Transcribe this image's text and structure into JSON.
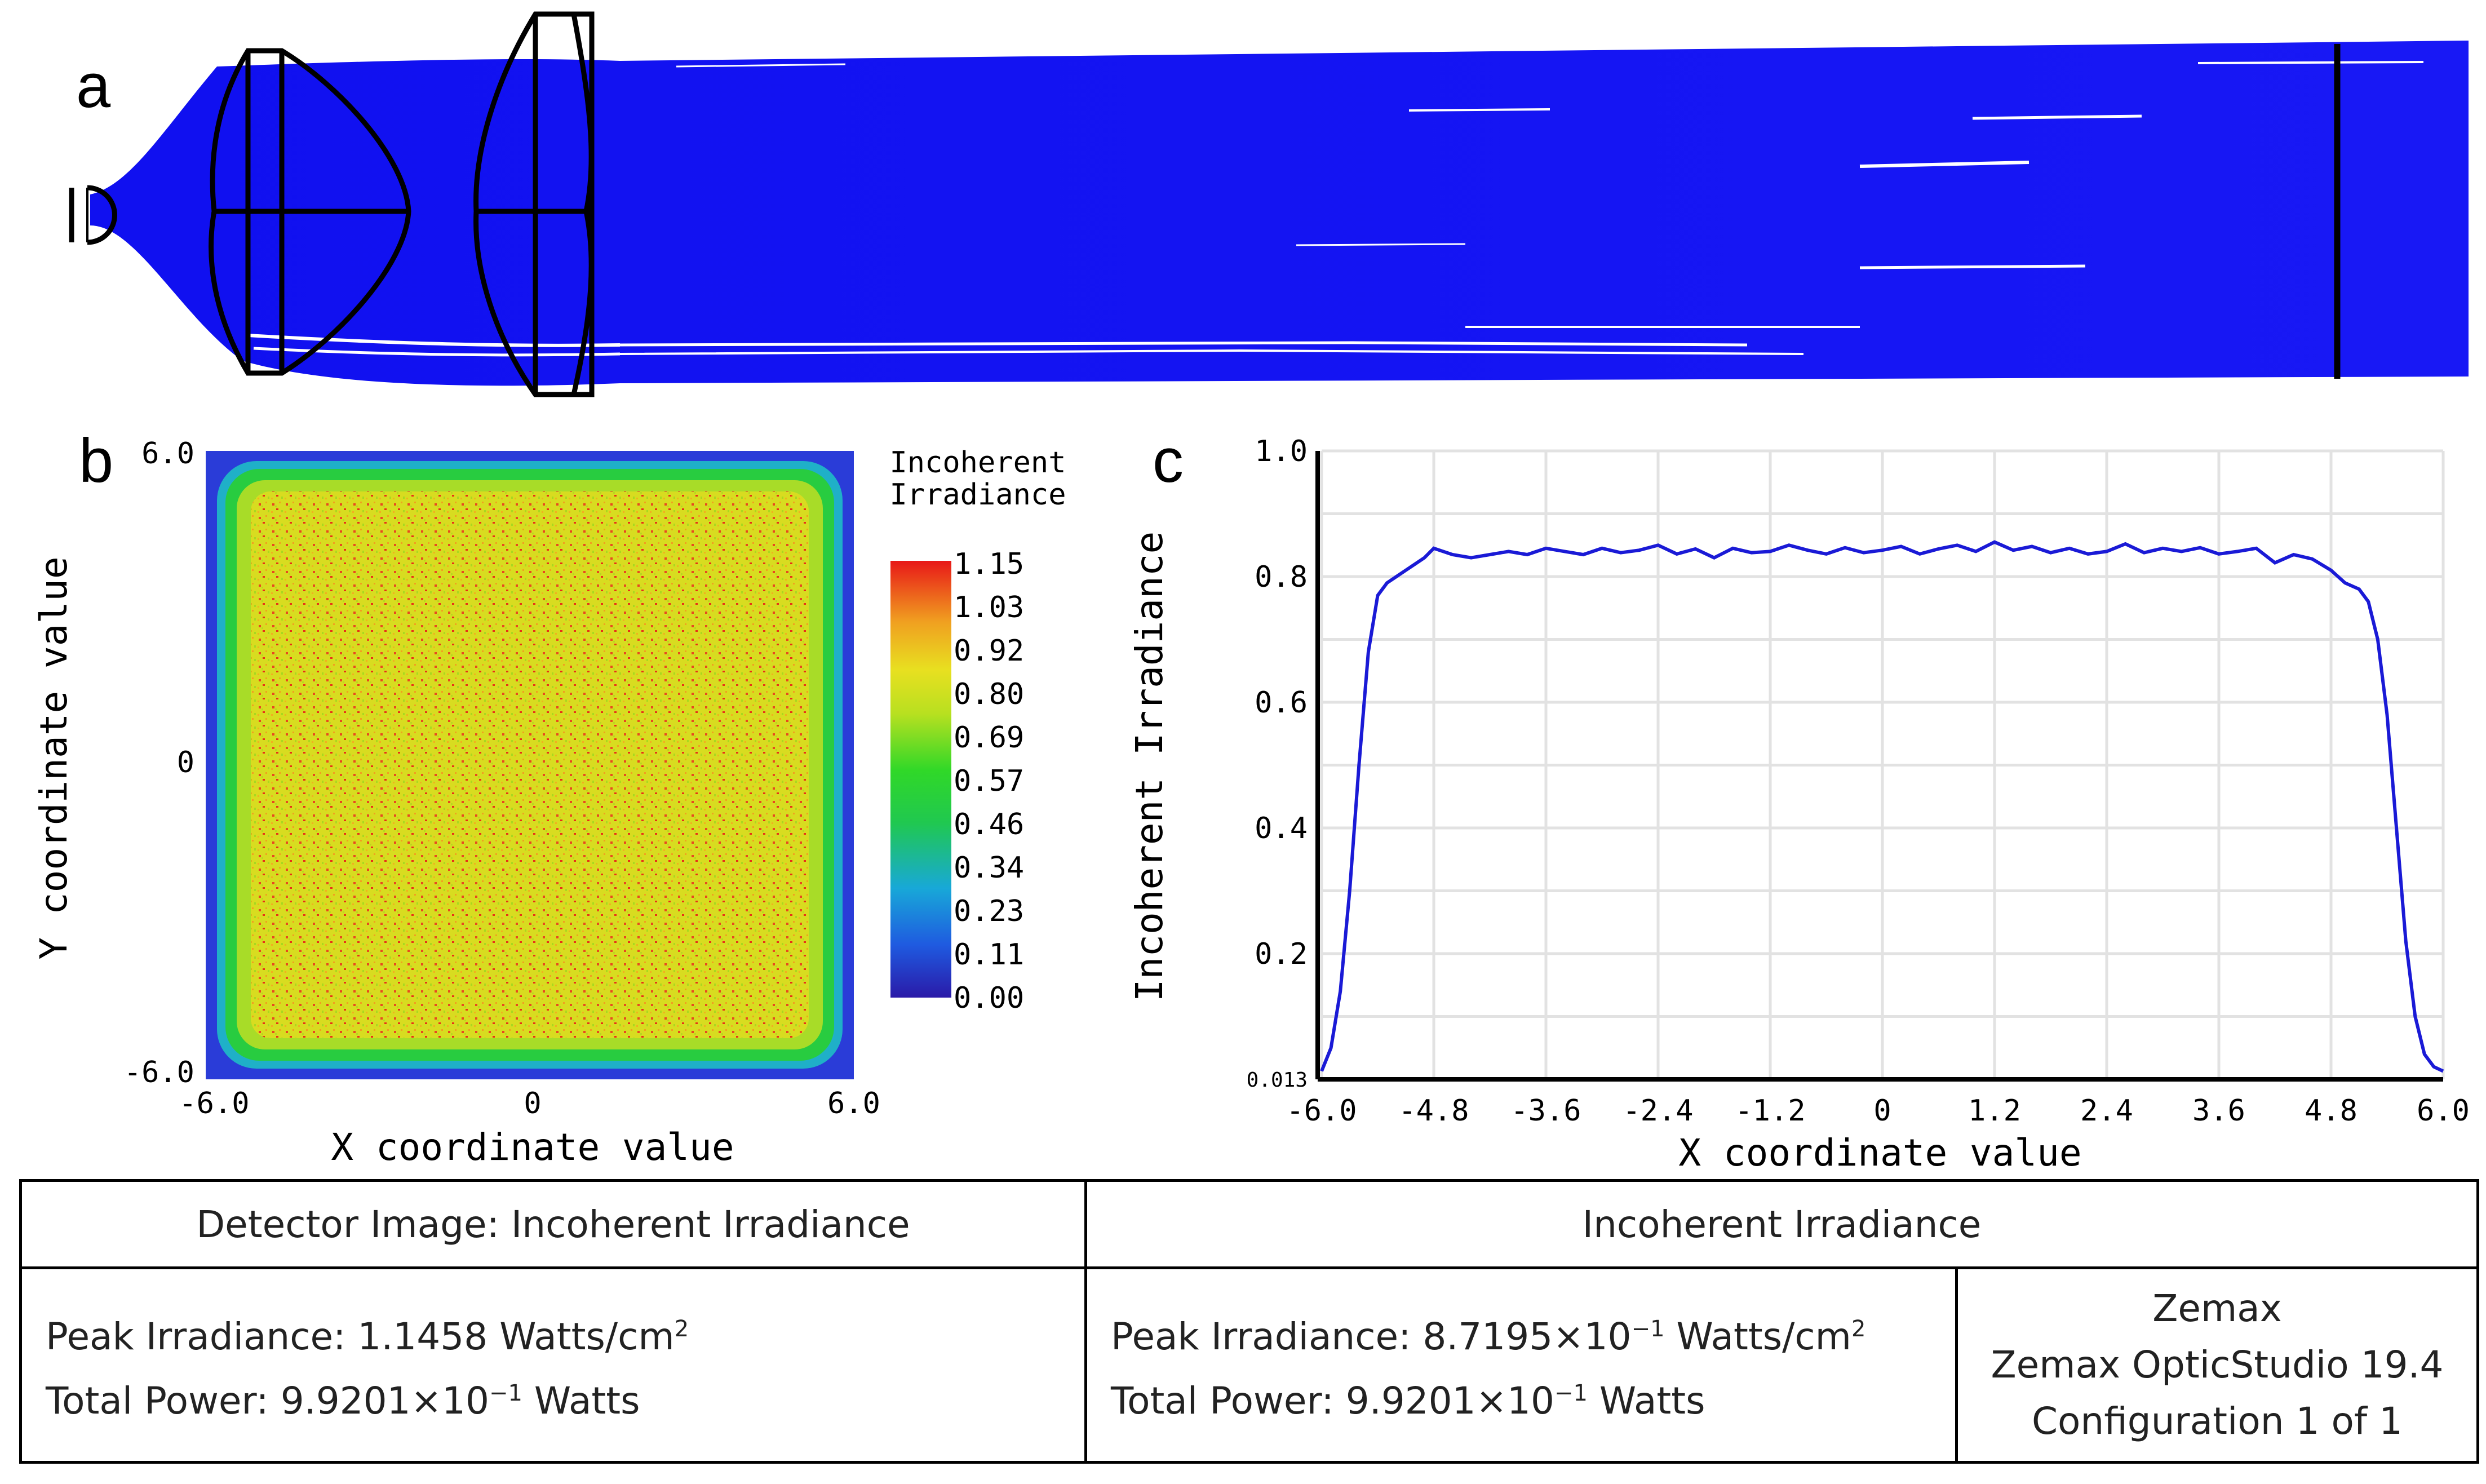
{
  "panels": {
    "a": {
      "letter": "a"
    },
    "b": {
      "letter": "b",
      "y_axis_title": "Y coordinate value",
      "x_axis_title": "X coordinate value",
      "y_ticks": [
        "6.0",
        "0",
        "-6.0"
      ],
      "x_ticks": [
        "-6.0",
        "0",
        "6.0"
      ],
      "legend_title_line1": "Incoherent",
      "legend_title_line2": "Irradiance",
      "legend_ticks": [
        "1.15",
        "1.03",
        "0.92",
        "0.80",
        "0.69",
        "0.57",
        "0.46",
        "0.34",
        "0.23",
        "0.11",
        "0.00"
      ],
      "colors": {
        "edge": "#2b3bd8",
        "ring": "#22c83c",
        "inner": "#d9df1e",
        "speckle": "#e8301a"
      }
    },
    "c": {
      "letter": "c"
    }
  },
  "chart_data": {
    "type": "line",
    "title": "",
    "xlabel": "X coordinate value",
    "ylabel": "Incoherent Irradiance",
    "xlim": [
      -6.0,
      6.0
    ],
    "ylim": [
      0.013,
      1.0
    ],
    "x_ticks": [
      "-6.0",
      "-4.8",
      "-3.6",
      "-2.4",
      "-1.2",
      "0",
      "1.2",
      "2.4",
      "3.6",
      "4.8",
      "6.0"
    ],
    "y_ticks": [
      "1.0",
      "0.8",
      "0.6",
      "0.4",
      "0.2",
      "0.013"
    ],
    "y_tick_values": [
      1.0,
      0.8,
      0.6,
      0.4,
      0.2,
      0.013
    ],
    "grid": true,
    "line_color": "#1a1ad6",
    "series": [
      {
        "x": [
          -6.0,
          -5.9,
          -5.8,
          -5.7,
          -5.6,
          -5.5,
          -5.4,
          -5.3,
          -5.2,
          -5.1,
          -5.0,
          -4.9,
          -4.8,
          -4.6,
          -4.4,
          -4.2,
          -4.0,
          -3.8,
          -3.6,
          -3.4,
          -3.2,
          -3.0,
          -2.8,
          -2.6,
          -2.4,
          -2.2,
          -2.0,
          -1.8,
          -1.6,
          -1.4,
          -1.2,
          -1.0,
          -0.8,
          -0.6,
          -0.4,
          -0.2,
          0.0,
          0.2,
          0.4,
          0.6,
          0.8,
          1.0,
          1.2,
          1.4,
          1.6,
          1.8,
          2.0,
          2.2,
          2.4,
          2.6,
          2.8,
          3.0,
          3.2,
          3.4,
          3.6,
          3.8,
          4.0,
          4.2,
          4.4,
          4.6,
          4.8,
          4.95,
          5.1,
          5.2,
          5.3,
          5.4,
          5.5,
          5.6,
          5.7,
          5.8,
          5.9,
          6.0
        ],
        "y": [
          0.013,
          0.05,
          0.14,
          0.3,
          0.5,
          0.68,
          0.77,
          0.79,
          0.8,
          0.81,
          0.82,
          0.83,
          0.845,
          0.835,
          0.83,
          0.835,
          0.84,
          0.835,
          0.845,
          0.84,
          0.835,
          0.845,
          0.838,
          0.842,
          0.85,
          0.836,
          0.844,
          0.83,
          0.845,
          0.838,
          0.84,
          0.85,
          0.842,
          0.836,
          0.846,
          0.838,
          0.842,
          0.848,
          0.836,
          0.844,
          0.85,
          0.84,
          0.855,
          0.842,
          0.848,
          0.838,
          0.845,
          0.836,
          0.84,
          0.852,
          0.838,
          0.845,
          0.84,
          0.846,
          0.836,
          0.84,
          0.845,
          0.822,
          0.835,
          0.828,
          0.81,
          0.79,
          0.78,
          0.76,
          0.7,
          0.58,
          0.4,
          0.22,
          0.1,
          0.04,
          0.02,
          0.013
        ]
      }
    ]
  },
  "table": {
    "left_header": "Detector Image: Incoherent Irradiance",
    "right_header": "Incoherent Irradiance",
    "left_peak_prefix": "Peak Irradiance: 1.1458 Watts/cm",
    "left_peak_sup": "2",
    "left_power_prefix": "Total Power: 9.9201×10",
    "left_power_sup": "−1",
    "left_power_suffix": " Watts",
    "right_peak_prefix": "Peak Irradiance: 8.7195×10",
    "right_peak_sup": "−1",
    "right_peak_mid": " Watts/cm",
    "right_peak_sup2": "2",
    "right_power_prefix": "Total Power: 9.9201×10",
    "right_power_sup": "−1",
    "right_power_suffix": " Watts",
    "zemax_line1": "Zemax",
    "zemax_line2": "Zemax OpticStudio 19.4",
    "zemax_line3": "Configuration 1 of 1"
  }
}
